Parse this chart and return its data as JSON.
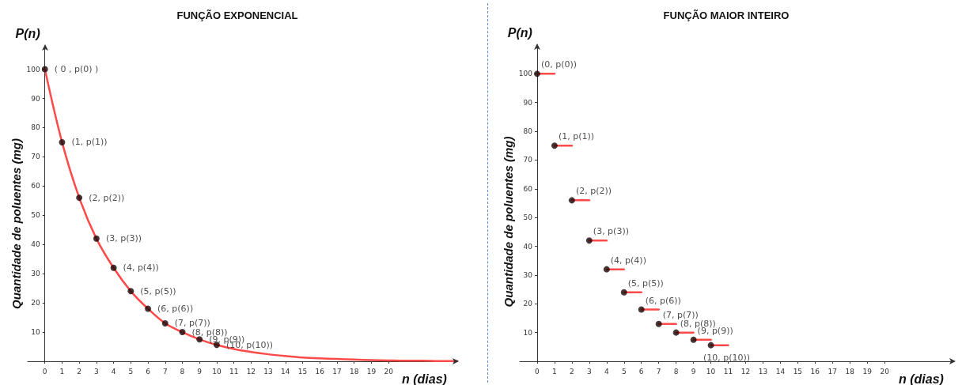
{
  "chart_data": [
    {
      "type": "line",
      "title": "FUNÇÃO EXPONENCIAL",
      "xlabel": "n (dias)",
      "ylabel": "Quantidade de poluentes (mg)",
      "annotations": [
        "P(n)"
      ],
      "xlim": [
        -1,
        24
      ],
      "ylim": [
        0,
        108
      ],
      "xticks": [
        0,
        1,
        2,
        3,
        4,
        5,
        6,
        7,
        8,
        9,
        10,
        11,
        12,
        13,
        14,
        15,
        16,
        17,
        18,
        19,
        20
      ],
      "yticks": [
        10,
        20,
        30,
        40,
        50,
        60,
        70,
        80,
        90,
        100
      ],
      "grid": false,
      "series": [
        {
          "color": "#ff4a4a",
          "marker": "none",
          "x": [
            0,
            1,
            2,
            3,
            4,
            5,
            6,
            7,
            8,
            9,
            10,
            11,
            12,
            13,
            14,
            15,
            16,
            17,
            18,
            19,
            20,
            21,
            22,
            23,
            24
          ],
          "values": [
            100,
            75,
            56,
            42,
            32,
            24,
            18,
            13,
            10,
            7.5,
            5.6,
            4.2,
            3.2,
            2.4,
            1.8,
            1.3,
            1,
            0.8,
            0.6,
            0.4,
            0.3,
            0.2,
            0.2,
            0.1,
            0.1
          ]
        },
        {
          "type": "scatter",
          "color": "#1a0505",
          "marker": "circle",
          "x": [
            0,
            1,
            2,
            3,
            4,
            5,
            6,
            7,
            8,
            9,
            10
          ],
          "values": [
            100,
            75,
            56,
            42,
            32,
            24,
            18,
            13,
            10,
            7.5,
            5.6
          ],
          "value_labels": [
            "( 0 , p(0) )",
            "(1, p(1))",
            "(2, p(2))",
            "(3, p(3))",
            "(4, p(4))",
            "(5, p(5))",
            "(6, p(6))",
            "(7, p(7))",
            "(8, p(8))",
            "(9, p(9))",
            "(10, p(10))"
          ]
        }
      ]
    },
    {
      "type": "line",
      "title": "FUNÇÃO MAIOR INTEIRO",
      "xlabel": "n (dias)",
      "ylabel": "Quantidade de poluentes (mg)",
      "annotations": [
        "P(n)"
      ],
      "xlim": [
        -1,
        24
      ],
      "ylim": [
        0,
        110
      ],
      "xticks": [
        0,
        1,
        2,
        3,
        4,
        5,
        6,
        7,
        8,
        9,
        10,
        11,
        12,
        13,
        14,
        15,
        16,
        17,
        18,
        19,
        20
      ],
      "yticks": [
        10,
        20,
        30,
        40,
        50,
        60,
        70,
        80,
        90,
        100
      ],
      "grid": false,
      "series": [
        {
          "color": "#ff4a4a",
          "marker": "none",
          "x": [
            0,
            1
          ],
          "values": [
            100,
            100
          ]
        },
        {
          "color": "#ff4a4a",
          "marker": "none",
          "x": [
            1,
            2
          ],
          "values": [
            75,
            75
          ]
        },
        {
          "color": "#ff4a4a",
          "marker": "none",
          "x": [
            2,
            3
          ],
          "values": [
            56,
            56
          ]
        },
        {
          "color": "#ff4a4a",
          "marker": "none",
          "x": [
            3,
            4
          ],
          "values": [
            42,
            42
          ]
        },
        {
          "color": "#ff4a4a",
          "marker": "none",
          "x": [
            4,
            5
          ],
          "values": [
            32,
            32
          ]
        },
        {
          "color": "#ff4a4a",
          "marker": "none",
          "x": [
            5,
            6
          ],
          "values": [
            24,
            24
          ]
        },
        {
          "color": "#ff4a4a",
          "marker": "none",
          "x": [
            6,
            7
          ],
          "values": [
            18,
            18
          ]
        },
        {
          "color": "#ff4a4a",
          "marker": "none",
          "x": [
            7,
            8
          ],
          "values": [
            13,
            13
          ]
        },
        {
          "color": "#ff4a4a",
          "marker": "none",
          "x": [
            8,
            9
          ],
          "values": [
            10,
            10
          ]
        },
        {
          "color": "#ff4a4a",
          "marker": "none",
          "x": [
            9,
            10
          ],
          "values": [
            7.5,
            7.5
          ]
        },
        {
          "color": "#ff4a4a",
          "marker": "none",
          "x": [
            10,
            11
          ],
          "values": [
            5.6,
            5.6
          ]
        },
        {
          "type": "scatter",
          "color": "#1a0505",
          "marker": "circle",
          "x": [
            0,
            1,
            2,
            3,
            4,
            5,
            6,
            7,
            8,
            9,
            10
          ],
          "values": [
            100,
            75,
            56,
            42,
            32,
            24,
            18,
            13,
            10,
            7.5,
            5.6
          ],
          "value_labels": [
            "(0, p(0))",
            "(1, p(1))",
            "(2, p(2))",
            "(3, p(3))",
            "(4, p(4))",
            "(5, p(5))",
            "(6, p(6))",
            "(7, p(7))",
            "(8, p(8))",
            "(9, p(9))",
            "(10, p(10))"
          ]
        }
      ]
    }
  ]
}
